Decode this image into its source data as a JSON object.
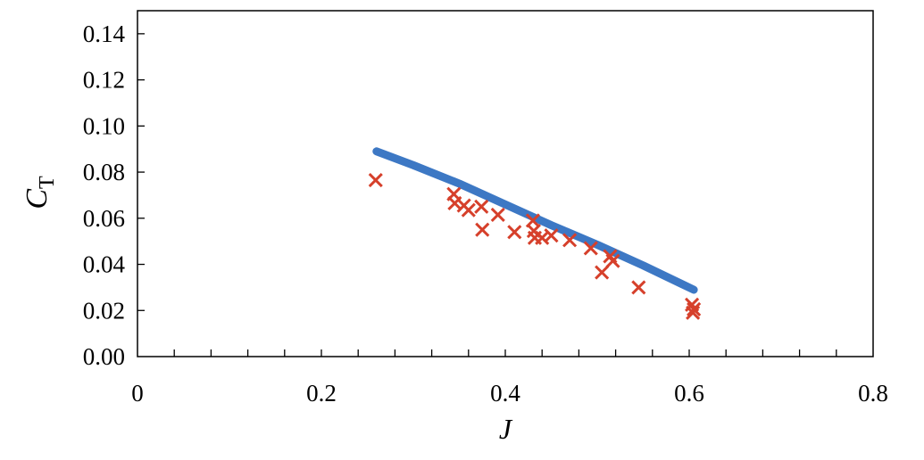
{
  "chart_data": {
    "type": "scatter",
    "title": "",
    "xlabel": "J",
    "ylabel": {
      "main": "C",
      "sub": "T"
    },
    "xlim": [
      0,
      0.8
    ],
    "ylim": [
      0,
      0.15
    ],
    "x_ticks": [
      0,
      0.2,
      0.4,
      0.6,
      0.8
    ],
    "x_tick_labels": [
      "0",
      "0.2",
      "0.4",
      "0.6",
      "0.8"
    ],
    "x_minor_step": 0.04,
    "y_ticks": [
      0,
      0.02,
      0.04,
      0.06,
      0.08,
      0.1,
      0.12,
      0.14
    ],
    "y_tick_labels": [
      "0.00",
      "0.02",
      "0.04",
      "0.06",
      "0.08",
      "0.10",
      "0.12",
      "0.14"
    ],
    "grid": false,
    "legend": "none",
    "series": [
      {
        "type": "line",
        "color": "#3d78c4",
        "x": [
          0.26,
          0.3,
          0.35,
          0.4,
          0.45,
          0.5,
          0.55,
          0.605
        ],
        "y": [
          0.089,
          0.083,
          0.075,
          0.066,
          0.057,
          0.0485,
          0.0395,
          0.029
        ]
      },
      {
        "type": "scatter",
        "marker": "x",
        "color": "#d6402b",
        "x": [
          0.259,
          0.344,
          0.345,
          0.355,
          0.36,
          0.374,
          0.375,
          0.392,
          0.41,
          0.43,
          0.431,
          0.432,
          0.44,
          0.45,
          0.47,
          0.493,
          0.505,
          0.514,
          0.517,
          0.545,
          0.603,
          0.605,
          0.604
        ],
        "y": [
          0.0765,
          0.0705,
          0.0665,
          0.0655,
          0.0635,
          0.065,
          0.055,
          0.0615,
          0.054,
          0.059,
          0.0545,
          0.0515,
          0.0515,
          0.0525,
          0.0505,
          0.047,
          0.0365,
          0.0435,
          0.0415,
          0.03,
          0.0225,
          0.0205,
          0.019
        ]
      }
    ]
  }
}
